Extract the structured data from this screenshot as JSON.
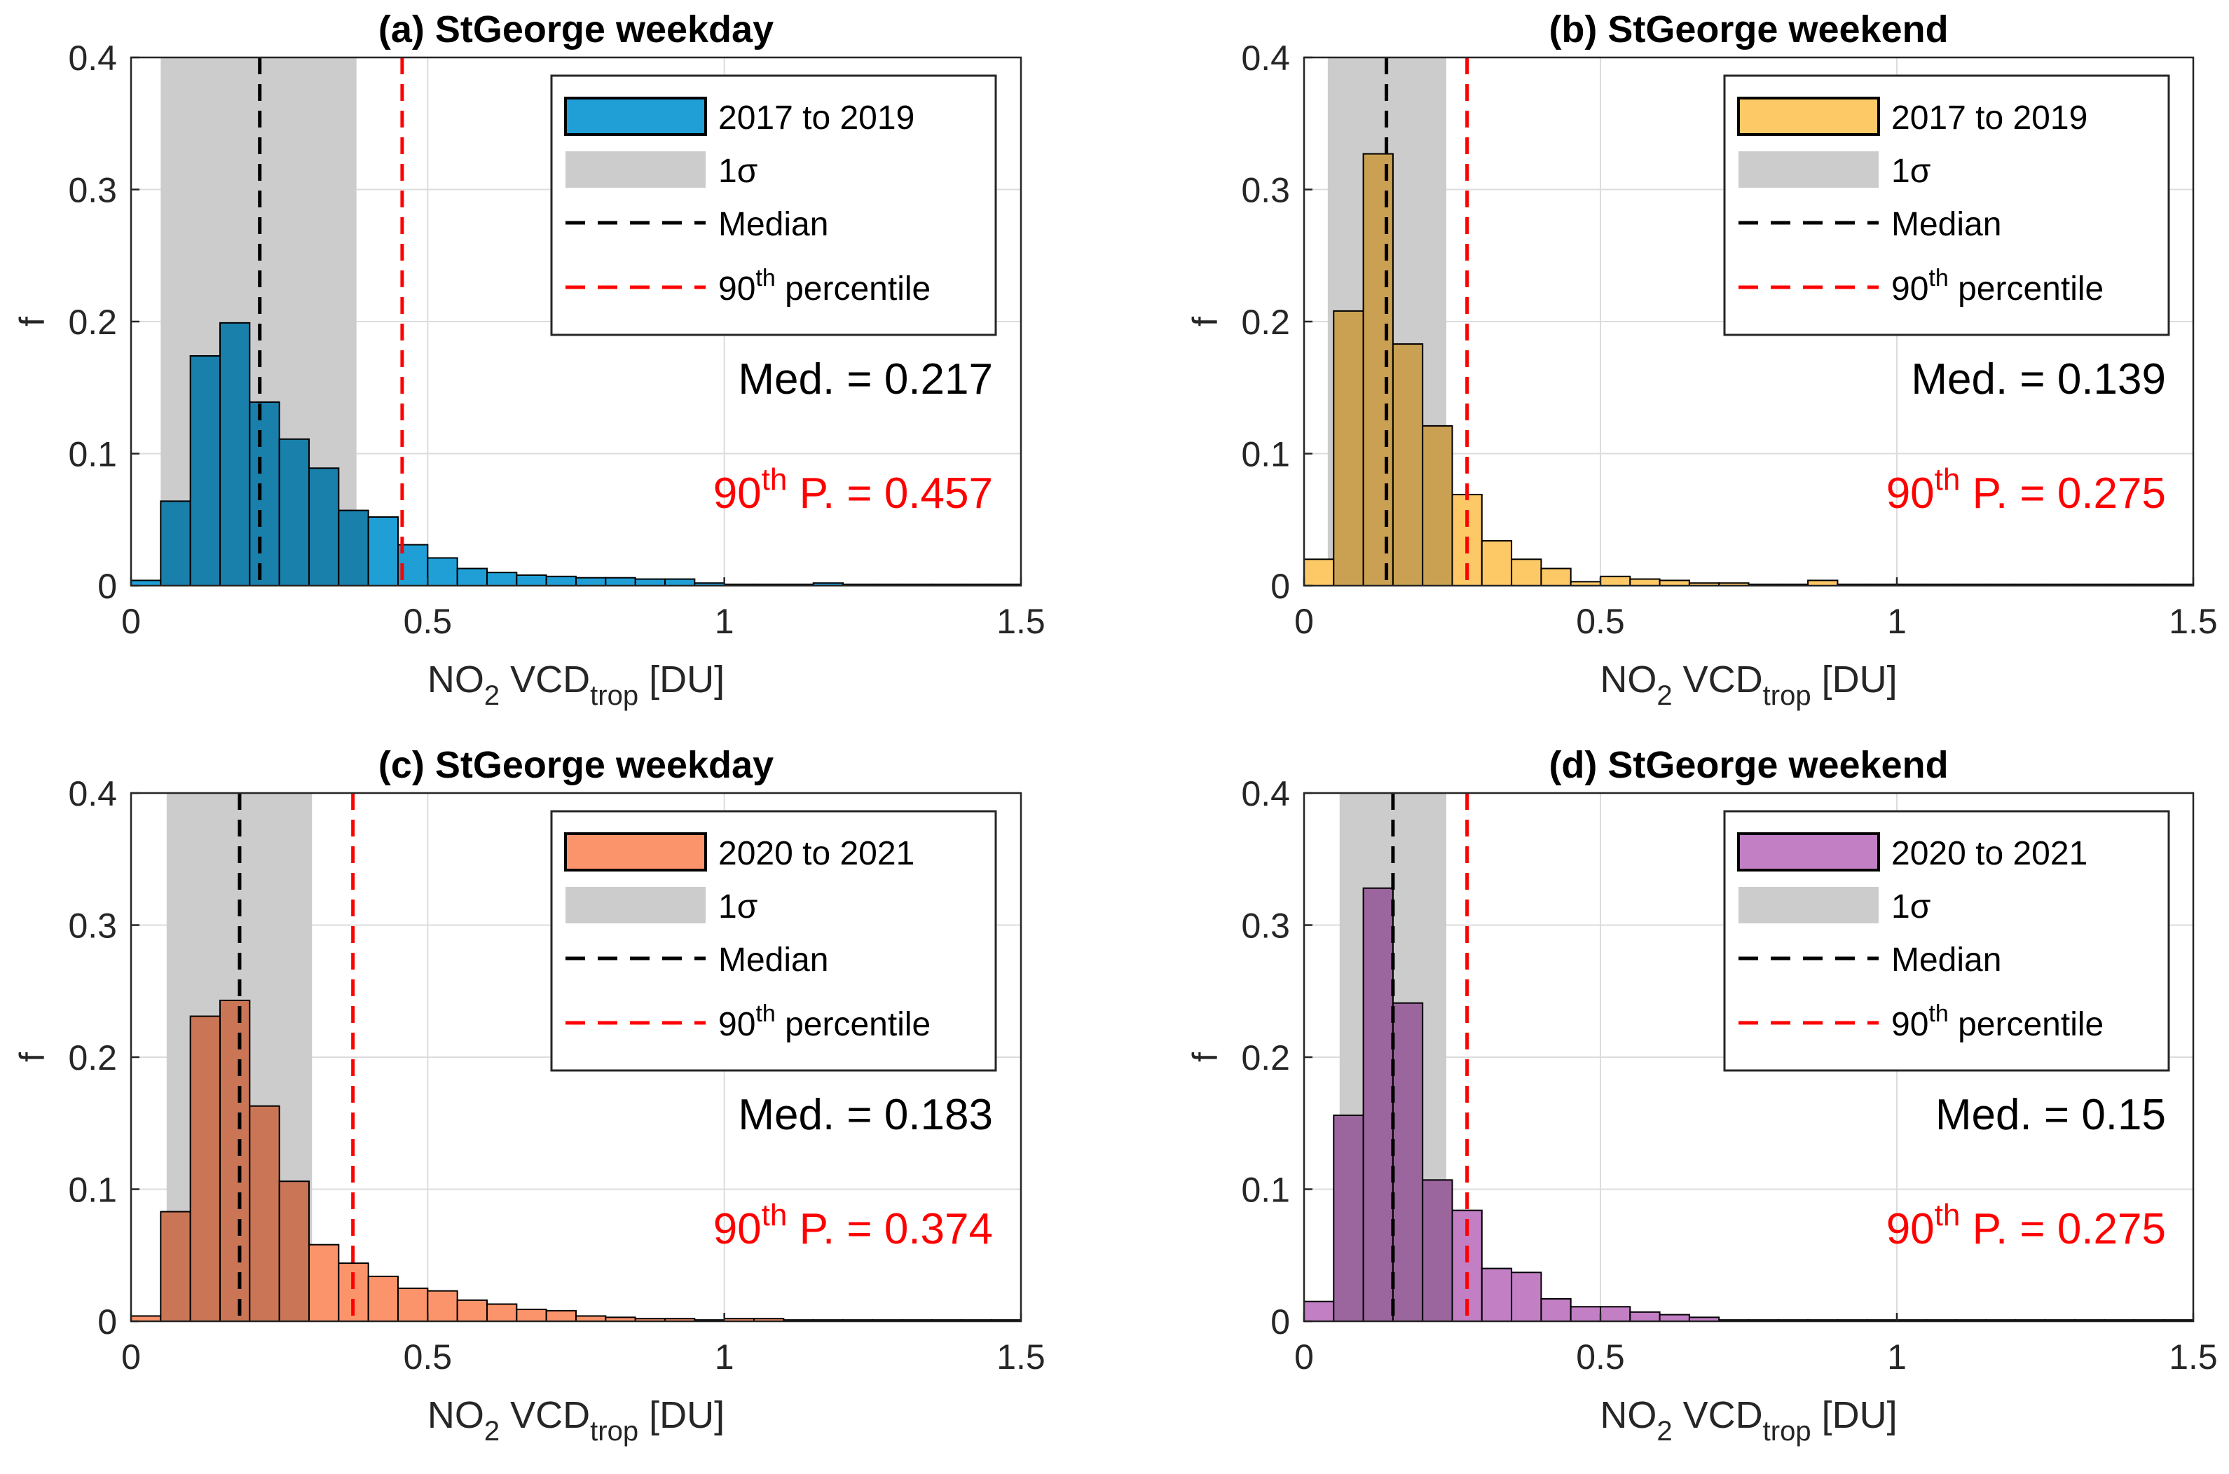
{
  "figure": {
    "x_label": {
      "base": "NO",
      "sub1": "2",
      "mid": " VCD",
      "sub2": "trop",
      "tail": " [DU]"
    },
    "y_label": "f",
    "x_ticks": [
      "0",
      "0.5",
      "1",
      "1.5"
    ],
    "y_ticks": [
      "0",
      "0.1",
      "0.2",
      "0.3",
      "0.4"
    ],
    "legend_common": {
      "sigma": "1σ",
      "median": "Median",
      "p90_base": "90",
      "p90_sup": "th",
      "p90_tail": " percentile"
    },
    "annotation_common": {
      "med_prefix": "Med. = ",
      "p90_base": "90",
      "p90_sup": "th",
      "p90_tail": " P. = "
    }
  },
  "chart_data": [
    {
      "type": "bar",
      "title": "(a) StGeorge weekday",
      "legend_label": "2017 to 2019",
      "color": "#1f9fd6",
      "xlim": [
        0,
        1.5
      ],
      "ylim": [
        0,
        0.4
      ],
      "bin_width": 0.05,
      "bin_start": 0,
      "values": [
        0.004,
        0.064,
        0.174,
        0.199,
        0.139,
        0.111,
        0.089,
        0.057,
        0.052,
        0.031,
        0.021,
        0.013,
        0.01,
        0.008,
        0.007,
        0.006,
        0.006,
        0.005,
        0.005,
        0.002,
        0.001,
        0.001,
        0.001,
        0.002,
        0.001,
        0.001,
        0.001,
        0.001,
        0.001,
        0.001
      ],
      "sigma_range": [
        0.05,
        0.38
      ],
      "median": 0.217,
      "p90": 0.457,
      "median_text": "0.217",
      "p90_text": "0.457"
    },
    {
      "type": "bar",
      "title": "(b) StGeorge weekend",
      "legend_label": "2017 to 2019",
      "color": "#fdc966",
      "xlim": [
        0,
        1.5
      ],
      "ylim": [
        0,
        0.4
      ],
      "bin_width": 0.05,
      "bin_start": 0,
      "values": [
        0.02,
        0.208,
        0.327,
        0.183,
        0.121,
        0.069,
        0.034,
        0.02,
        0.013,
        0.003,
        0.007,
        0.005,
        0.004,
        0.002,
        0.002,
        0.001,
        0.001,
        0.004,
        0.001,
        0.001,
        0.001,
        0.001,
        0.001,
        0.001,
        0.001,
        0.001,
        0.001,
        0.001,
        0.001,
        0.001
      ],
      "sigma_range": [
        0.04,
        0.24
      ],
      "median": 0.139,
      "p90": 0.275,
      "median_text": "0.139",
      "p90_text": "0.275"
    },
    {
      "type": "bar",
      "title": "(c) StGeorge weekday",
      "legend_label": "2020 to 2021",
      "color": "#fc946b",
      "xlim": [
        0,
        1.5
      ],
      "ylim": [
        0,
        0.4
      ],
      "bin_width": 0.05,
      "bin_start": 0,
      "values": [
        0.004,
        0.083,
        0.231,
        0.243,
        0.163,
        0.106,
        0.058,
        0.044,
        0.034,
        0.025,
        0.023,
        0.016,
        0.013,
        0.009,
        0.008,
        0.004,
        0.003,
        0.002,
        0.002,
        0.001,
        0.002,
        0.002,
        0.001,
        0.001,
        0.001,
        0.001,
        0.001,
        0.001,
        0.001,
        0.001
      ],
      "sigma_range": [
        0.06,
        0.305
      ],
      "median": 0.183,
      "p90": 0.374,
      "median_text": "0.183",
      "p90_text": "0.374"
    },
    {
      "type": "bar",
      "title": "(d) StGeorge weekend",
      "legend_label": "2020 to 2021",
      "color": "#c27fc4",
      "xlim": [
        0,
        1.5
      ],
      "ylim": [
        0,
        0.4
      ],
      "bin_width": 0.05,
      "bin_start": 0,
      "values": [
        0.015,
        0.156,
        0.328,
        0.241,
        0.107,
        0.084,
        0.04,
        0.037,
        0.017,
        0.011,
        0.011,
        0.007,
        0.005,
        0.003,
        0.001,
        0.001,
        0.001,
        0.001,
        0.001,
        0.001,
        0.001,
        0.001,
        0.001,
        0.001,
        0.001,
        0.001,
        0.001,
        0.001,
        0.001,
        0.001
      ],
      "sigma_range": [
        0.06,
        0.24
      ],
      "median": 0.15,
      "p90": 0.275,
      "median_text": "0.15",
      "p90_text": "0.275"
    }
  ]
}
